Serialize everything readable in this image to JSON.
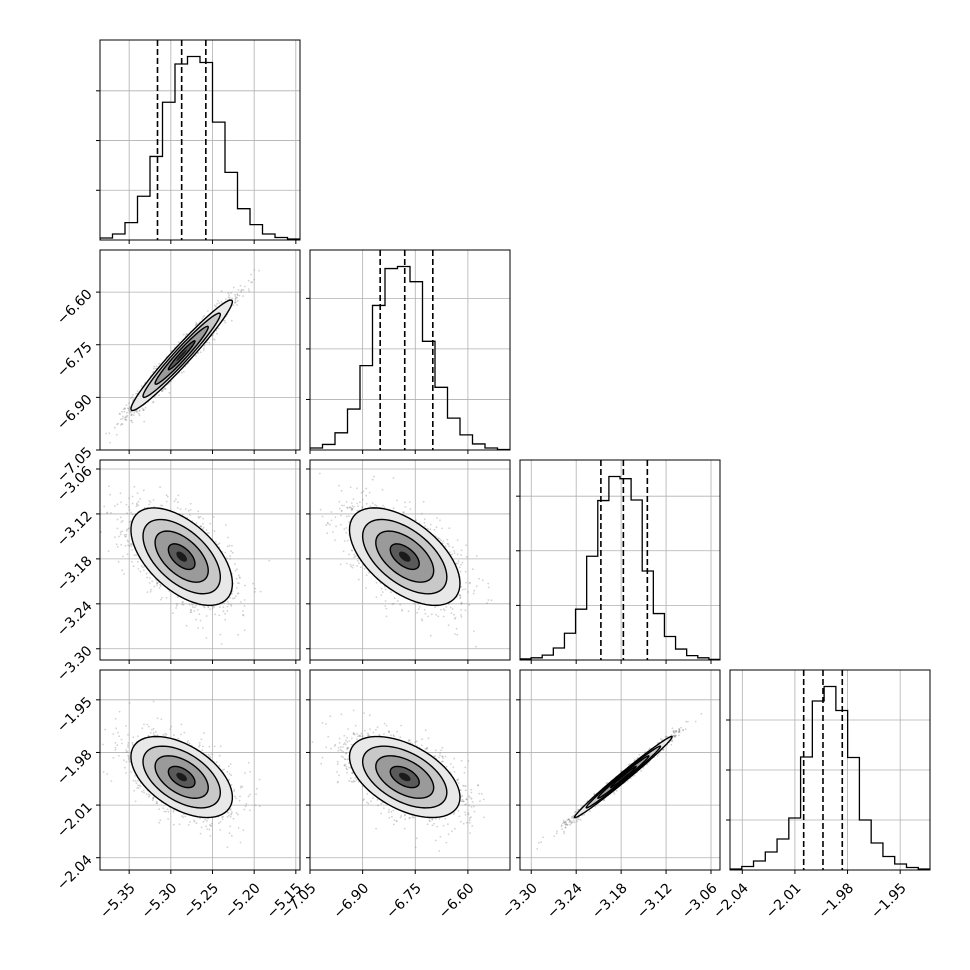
{
  "chart_data": {
    "type": "corner",
    "title": "",
    "params": [
      {
        "range": [
          -5.385,
          -5.145
        ],
        "ticks": [
          -5.35,
          -5.3,
          -5.25,
          -5.2,
          -5.15
        ],
        "tick_labels": [
          "−5.35",
          "−5.30",
          "−5.25",
          "−5.20",
          "−5.15"
        ],
        "quantiles": [
          -5.316,
          -5.287,
          -5.258
        ],
        "hist_counts": [
          0.4,
          1.2,
          3.5,
          8.8,
          16.8,
          27.7,
          35.4,
          36.9,
          35.7,
          23.7,
          13.6,
          6.3,
          3.1,
          1.2,
          0.5,
          0.2
        ]
      },
      {
        "range": [
          -7.05,
          -6.48
        ],
        "ticks": [
          -7.05,
          -6.9,
          -6.75,
          -6.6
        ],
        "tick_labels": [
          "−7.05",
          "−6.90",
          "−6.75",
          "−6.60"
        ],
        "quantiles": [
          -6.85,
          -6.78,
          -6.7
        ],
        "hist_counts": [
          0.4,
          1.1,
          3.4,
          8.1,
          16.7,
          28.6,
          35.9,
          36.3,
          33.3,
          21.5,
          12.4,
          6.3,
          3.0,
          1.2,
          0.4,
          0.1
        ]
      },
      {
        "range": [
          -3.315,
          -3.048
        ],
        "ticks": [
          -3.3,
          -3.24,
          -3.18,
          -3.12,
          -3.06
        ],
        "tick_labels": [
          "−3.30",
          "−3.24",
          "−3.18",
          "−3.12",
          "−3.06"
        ],
        "quantiles": [
          -3.207,
          -3.177,
          -3.145
        ],
        "hist_counts": [
          0.2,
          0.4,
          0.9,
          2.2,
          4.9,
          9.3,
          19.0,
          29.2,
          33.6,
          33.2,
          29.3,
          16.3,
          8.5,
          4.3,
          2.0,
          0.8,
          0.4,
          0.1
        ]
      },
      {
        "range": [
          -2.047,
          -1.933
        ],
        "ticks": [
          -2.04,
          -2.01,
          -1.98,
          -1.95
        ],
        "tick_labels": [
          "−2.04",
          "−2.01",
          "−1.98",
          "−1.95"
        ],
        "quantiles": [
          -2.005,
          -1.994,
          -1.983
        ],
        "hist_counts": [
          0.2,
          0.7,
          1.8,
          3.6,
          6.2,
          10.4,
          22.6,
          33.8,
          36.7,
          31.9,
          22.5,
          10.0,
          5.4,
          2.7,
          1.2,
          0.5,
          0.2
        ]
      }
    ],
    "correlations": [
      [
        1.0,
        0.97,
        -0.55,
        -0.5
      ],
      [
        0.97,
        1.0,
        -0.55,
        -0.5
      ],
      [
        -0.55,
        -0.55,
        1.0,
        0.99
      ],
      [
        -0.5,
        -0.5,
        0.99,
        1.0
      ]
    ],
    "grid": true,
    "colors": {
      "line": "#000000",
      "grid": "#b0b0b0",
      "scatter": "#7f7f7f"
    }
  }
}
